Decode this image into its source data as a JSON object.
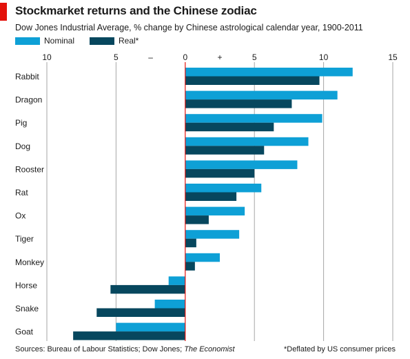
{
  "title": "Stockmarket returns and the Chinese zodiac",
  "subtitle": "Dow Jones Industrial Average, % change by Chinese astrological calendar year, 1900-2011",
  "colors": {
    "nominal": "#0ea0d6",
    "real": "#07475e",
    "accent": "#e3120b",
    "zero_line": "#e3120b",
    "grid": "#a6a6a6"
  },
  "footer": {
    "source_prefix": "Sources: Bureau of Labour Statistics; Dow Jones; ",
    "source_italic": "The Economist",
    "note": "*Deflated by US consumer prices"
  },
  "chart_data": {
    "type": "bar",
    "orientation": "horizontal",
    "categories": [
      "Rabbit",
      "Dragon",
      "Pig",
      "Dog",
      "Rooster",
      "Rat",
      "Ox",
      "Tiger",
      "Monkey",
      "Horse",
      "Snake",
      "Goat"
    ],
    "series": [
      {
        "name": "Nominal",
        "values": [
          12.1,
          11.0,
          9.9,
          8.9,
          8.1,
          5.5,
          4.3,
          3.9,
          2.5,
          -1.2,
          -2.2,
          -5.0
        ]
      },
      {
        "name": "Real*",
        "values": [
          9.7,
          7.7,
          6.4,
          5.7,
          5.0,
          3.7,
          1.7,
          0.8,
          0.7,
          -5.4,
          -6.4,
          -8.1
        ]
      }
    ],
    "xlim": [
      -10,
      15
    ],
    "ticks": [
      {
        "value": -10,
        "label": "10"
      },
      {
        "value": -5,
        "label": "5"
      },
      {
        "value": -2.5,
        "label": "–"
      },
      {
        "value": 0,
        "label": "0"
      },
      {
        "value": 2.5,
        "label": "+"
      },
      {
        "value": 5,
        "label": "5"
      },
      {
        "value": 10,
        "label": "10"
      },
      {
        "value": 15,
        "label": "15"
      }
    ],
    "gridlines": [
      -10,
      -5,
      5,
      10,
      15
    ],
    "legend_position": "top-left"
  }
}
